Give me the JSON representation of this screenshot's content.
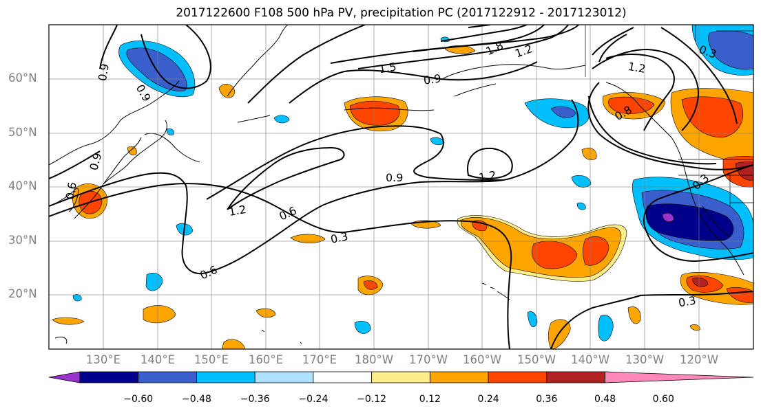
{
  "title": "2017122600 F108 500 hPa PV, precipitation PC (2017122912 - 2017123012)",
  "map": {
    "lat_labels": [
      "60°N",
      "50°N",
      "40°N",
      "30°N",
      "20°N"
    ],
    "lon_labels": [
      "130°E",
      "140°E",
      "150°E",
      "160°E",
      "170°E",
      "180°W",
      "170°W",
      "160°W",
      "150°W",
      "140°W",
      "130°W",
      "120°W"
    ],
    "contour_labels": [
      "0.9",
      "1.5",
      "1.8",
      "1.2",
      "0.9",
      "0.3",
      "1.2",
      "0.9",
      "1.2",
      "1.2",
      "0.9",
      "0.6",
      "0.3",
      "0.6",
      "0.3",
      "0.3",
      "0.9",
      "0.6",
      "0.8"
    ]
  },
  "colorbar": {
    "ticks": [
      "−0.60",
      "−0.48",
      "−0.36",
      "−0.24",
      "−0.12",
      "0.12",
      "0.24",
      "0.36",
      "0.48",
      "0.60"
    ],
    "colors": [
      "#9933cc",
      "#00008b",
      "#3a5fcd",
      "#00bfff",
      "#b0e2ff",
      "#ffffff",
      "#ffec8b",
      "#ffa500",
      "#ff4500",
      "#b22222",
      "#ff88bb"
    ]
  }
}
